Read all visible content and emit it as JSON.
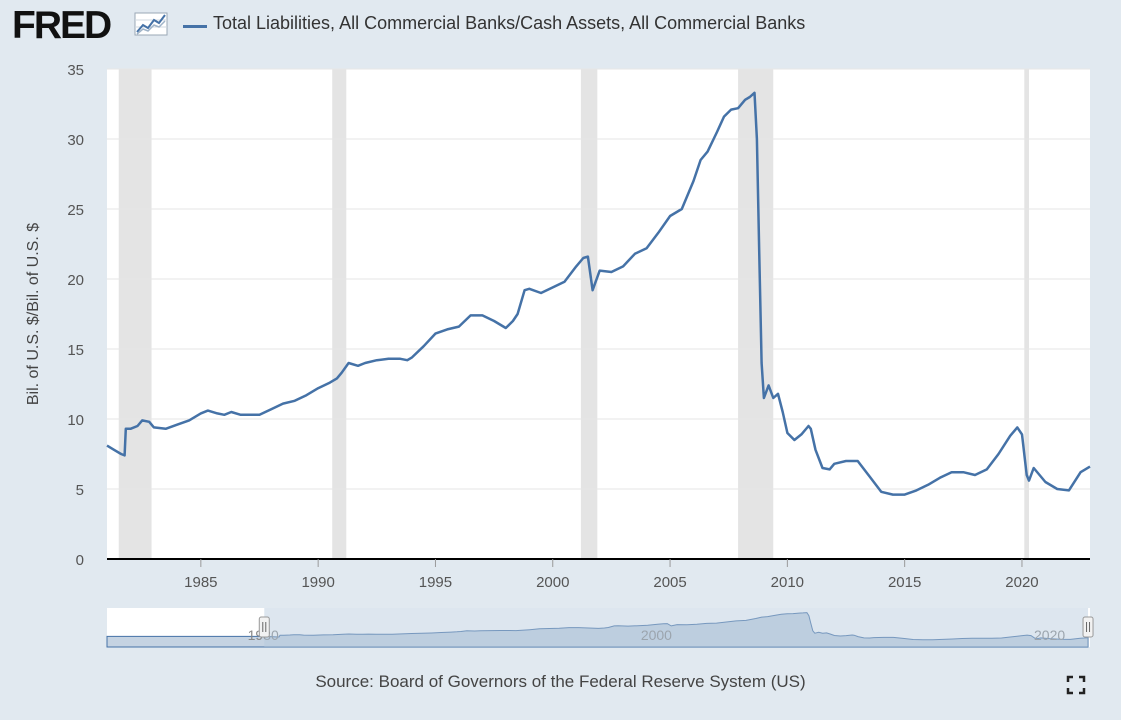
{
  "header": {
    "logo_text": "FRED",
    "legend_label": "Total Liabilities, All Commercial Banks/Cash Assets, All Commercial Banks"
  },
  "colors": {
    "series": "#4572a7",
    "recession": "#e4e4e4",
    "background": "#e1e9f0",
    "navigator_mask": "#b4c8dc"
  },
  "chart_data": {
    "type": "line",
    "title": "Total Liabilities, All Commercial Banks/Cash Assets, All Commercial Banks",
    "xlabel": "",
    "ylabel": "Bil. of U.S. $/Bil. of U.S. $",
    "xlim": [
      1981.0,
      2022.9
    ],
    "ylim": [
      0,
      35
    ],
    "yticks": [
      0,
      5,
      10,
      15,
      20,
      25,
      30,
      35
    ],
    "xticks": [
      1985,
      1990,
      1995,
      2000,
      2005,
      2010,
      2015,
      2020
    ],
    "grid": true,
    "recessions": [
      [
        1981.5,
        1982.9
      ],
      [
        1990.6,
        1991.2
      ],
      [
        2001.2,
        2001.9
      ],
      [
        2007.9,
        2009.4
      ],
      [
        2020.1,
        2020.3
      ]
    ],
    "series": [
      {
        "name": "Total Liabilities, All Commercial Banks/Cash Assets, All Commercial Banks",
        "x": [
          1981.0,
          1981.3,
          1981.6,
          1981.75,
          1981.8,
          1982.0,
          1982.3,
          1982.5,
          1982.8,
          1983.0,
          1983.5,
          1984.0,
          1984.5,
          1985.0,
          1985.3,
          1985.7,
          1986.0,
          1986.3,
          1986.7,
          1987.0,
          1987.5,
          1988.0,
          1988.5,
          1989.0,
          1989.5,
          1990.0,
          1990.5,
          1990.8,
          1991.0,
          1991.3,
          1991.7,
          1992.0,
          1992.5,
          1993.0,
          1993.5,
          1993.8,
          1994.0,
          1994.5,
          1995.0,
          1995.5,
          1996.0,
          1996.5,
          1997.0,
          1997.5,
          1998.0,
          1998.3,
          1998.5,
          1998.8,
          1999.0,
          1999.5,
          2000.0,
          2000.5,
          2001.0,
          2001.3,
          2001.5,
          2001.7,
          2002.0,
          2002.5,
          2003.0,
          2003.5,
          2004.0,
          2004.5,
          2005.0,
          2005.5,
          2006.0,
          2006.3,
          2006.6,
          2007.0,
          2007.3,
          2007.6,
          2007.9,
          2008.2,
          2008.4,
          2008.6,
          2008.7,
          2008.8,
          2008.9,
          2009.0,
          2009.2,
          2009.4,
          2009.6,
          2009.8,
          2010.0,
          2010.3,
          2010.6,
          2010.9,
          2011.0,
          2011.2,
          2011.5,
          2011.8,
          2012.0,
          2012.5,
          2013.0,
          2013.5,
          2014.0,
          2014.5,
          2015.0,
          2015.5,
          2016.0,
          2016.5,
          2017.0,
          2017.5,
          2018.0,
          2018.5,
          2019.0,
          2019.5,
          2019.8,
          2020.0,
          2020.2,
          2020.3,
          2020.5,
          2021.0,
          2021.5,
          2022.0,
          2022.5,
          2022.9
        ],
        "values": [
          8.1,
          7.8,
          7.5,
          7.4,
          9.3,
          9.3,
          9.5,
          9.9,
          9.8,
          9.4,
          9.3,
          9.6,
          9.9,
          10.4,
          10.6,
          10.4,
          10.3,
          10.5,
          10.3,
          10.3,
          10.3,
          10.7,
          11.1,
          11.3,
          11.7,
          12.2,
          12.6,
          12.9,
          13.3,
          14.0,
          13.8,
          14.0,
          14.2,
          14.3,
          14.3,
          14.2,
          14.4,
          15.2,
          16.1,
          16.4,
          16.6,
          17.4,
          17.4,
          17.0,
          16.5,
          17.0,
          17.5,
          19.2,
          19.3,
          19.0,
          19.4,
          19.8,
          20.9,
          21.5,
          21.6,
          19.2,
          20.6,
          20.5,
          20.9,
          21.8,
          22.2,
          23.3,
          24.5,
          25.0,
          27.0,
          28.5,
          29.1,
          30.5,
          31.6,
          32.1,
          32.2,
          32.8,
          33.0,
          33.3,
          30.0,
          22.0,
          14.0,
          11.5,
          12.4,
          11.5,
          11.8,
          10.5,
          9.0,
          8.5,
          8.9,
          9.5,
          9.3,
          7.8,
          6.5,
          6.4,
          6.8,
          7.0,
          7.0,
          5.9,
          4.8,
          4.6,
          4.6,
          4.9,
          5.3,
          5.8,
          6.2,
          6.2,
          6.0,
          6.4,
          7.5,
          8.8,
          9.4,
          8.9,
          6.0,
          5.6,
          6.5,
          5.5,
          5.0,
          4.9,
          6.2,
          6.6
        ]
      }
    ],
    "navigator": {
      "labels": [
        "1980",
        "2000",
        "2020"
      ],
      "label_years": [
        1980,
        2000,
        2020
      ],
      "range": [
        1973.0,
        2023.0
      ],
      "selected": [
        1981.0,
        2022.9
      ]
    }
  },
  "footer": {
    "source": "Source: Board of Governors of the Federal Reserve System (US)"
  }
}
